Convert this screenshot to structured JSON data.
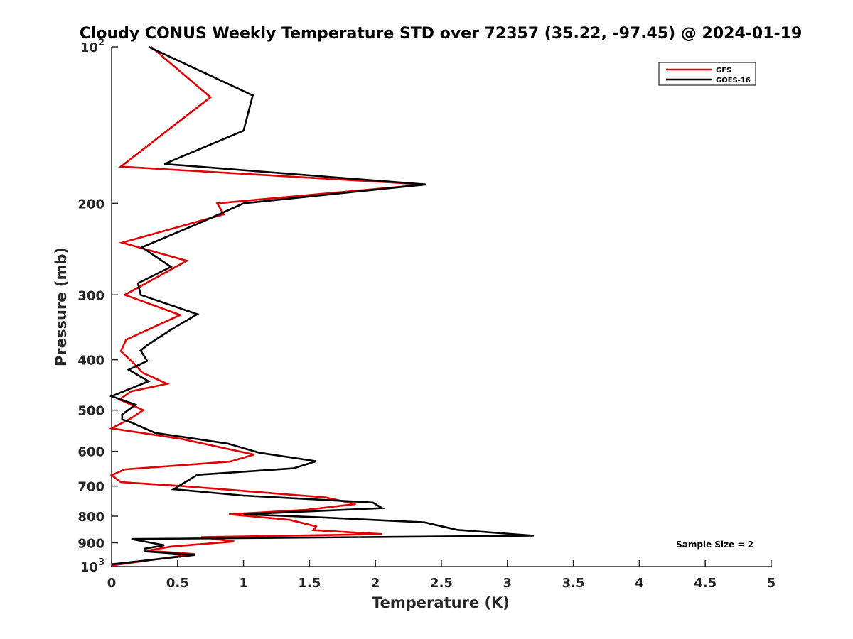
{
  "chart_data": {
    "type": "line",
    "title": "Cloudy CONUS Weekly Temperature STD over 72357 (35.22, -97.45) @ 2024-01-19",
    "xlabel": "Temperature (K)",
    "ylabel": "Pressure (mb)",
    "xlim": [
      0,
      5
    ],
    "ylim": [
      100,
      1000
    ],
    "y_scale": "log",
    "y_reversed": true,
    "x_ticks": [
      "0",
      "0.5",
      "1",
      "1.5",
      "2",
      "2.5",
      "3",
      "3.5",
      "4",
      "4.5",
      "5"
    ],
    "y_ticks": [
      {
        "value": 100,
        "base": "10",
        "exp": "2"
      },
      {
        "value": 200,
        "label": "200"
      },
      {
        "value": 300,
        "label": "300"
      },
      {
        "value": 400,
        "label": "400"
      },
      {
        "value": 500,
        "label": "500"
      },
      {
        "value": 600,
        "label": "600"
      },
      {
        "value": 700,
        "label": "700"
      },
      {
        "value": 800,
        "label": "800"
      },
      {
        "value": 900,
        "label": "900"
      },
      {
        "value": 1000,
        "base": "10",
        "exp": "3"
      }
    ],
    "grid": false,
    "legend_position": "top-right",
    "annotation": "Sample Size = 2",
    "series": [
      {
        "name": "GFS",
        "color": "#e00000",
        "points": [
          [
            0.3,
            100
          ],
          [
            0.75,
            125
          ],
          [
            0.42,
            145
          ],
          [
            0.07,
            170
          ],
          [
            2.38,
            184
          ],
          [
            0.8,
            200
          ],
          [
            0.85,
            210
          ],
          [
            0.08,
            238
          ],
          [
            0.57,
            258
          ],
          [
            0.1,
            300
          ],
          [
            0.52,
            328
          ],
          [
            0.11,
            366
          ],
          [
            0.07,
            385
          ],
          [
            0.18,
            409
          ],
          [
            0.23,
            423
          ],
          [
            0.42,
            445
          ],
          [
            0.15,
            460
          ],
          [
            0.06,
            477
          ],
          [
            0.24,
            500
          ],
          [
            0.15,
            518
          ],
          [
            0.0,
            542
          ],
          [
            0.53,
            568
          ],
          [
            1.08,
            609
          ],
          [
            0.9,
            628
          ],
          [
            0.1,
            650
          ],
          [
            0.0,
            667
          ],
          [
            0.07,
            688
          ],
          [
            0.53,
            700
          ],
          [
            1.62,
            736
          ],
          [
            1.85,
            758
          ],
          [
            1.47,
            778
          ],
          [
            0.89,
            793
          ],
          [
            1.35,
            813
          ],
          [
            1.55,
            837
          ],
          [
            1.53,
            851
          ],
          [
            2.05,
            866
          ],
          [
            0.68,
            878
          ],
          [
            0.93,
            895
          ],
          [
            0.45,
            915
          ],
          [
            0.27,
            932
          ],
          [
            0.63,
            946
          ],
          [
            0.0,
            995
          ]
        ]
      },
      {
        "name": "GOES-16",
        "color": "#000000",
        "points": [
          [
            0.28,
            100
          ],
          [
            1.07,
            124
          ],
          [
            1.0,
            145
          ],
          [
            0.4,
            168
          ],
          [
            2.38,
            184
          ],
          [
            1.0,
            200
          ],
          [
            0.67,
            218
          ],
          [
            0.23,
            243
          ],
          [
            0.45,
            265
          ],
          [
            0.2,
            285
          ],
          [
            0.22,
            300
          ],
          [
            0.65,
            327
          ],
          [
            0.45,
            350
          ],
          [
            0.27,
            375
          ],
          [
            0.22,
            384
          ],
          [
            0.27,
            402
          ],
          [
            0.13,
            418
          ],
          [
            0.28,
            440
          ],
          [
            0.0,
            470
          ],
          [
            0.18,
            488
          ],
          [
            0.08,
            510
          ],
          [
            0.08,
            521
          ],
          [
            0.15,
            528
          ],
          [
            0.33,
            553
          ],
          [
            0.88,
            580
          ],
          [
            1.12,
            604
          ],
          [
            1.55,
            627
          ],
          [
            1.38,
            647
          ],
          [
            0.65,
            666
          ],
          [
            0.55,
            690
          ],
          [
            0.47,
            710
          ],
          [
            1.0,
            730
          ],
          [
            1.98,
            753
          ],
          [
            2.05,
            772
          ],
          [
            1.0,
            793
          ],
          [
            1.57,
            804
          ],
          [
            2.37,
            822
          ],
          [
            2.62,
            850
          ],
          [
            3.2,
            872
          ],
          [
            0.15,
            885
          ],
          [
            0.4,
            910
          ],
          [
            0.25,
            924
          ],
          [
            0.25,
            935
          ],
          [
            0.63,
            950
          ],
          [
            0.0,
            990
          ]
        ]
      }
    ]
  }
}
